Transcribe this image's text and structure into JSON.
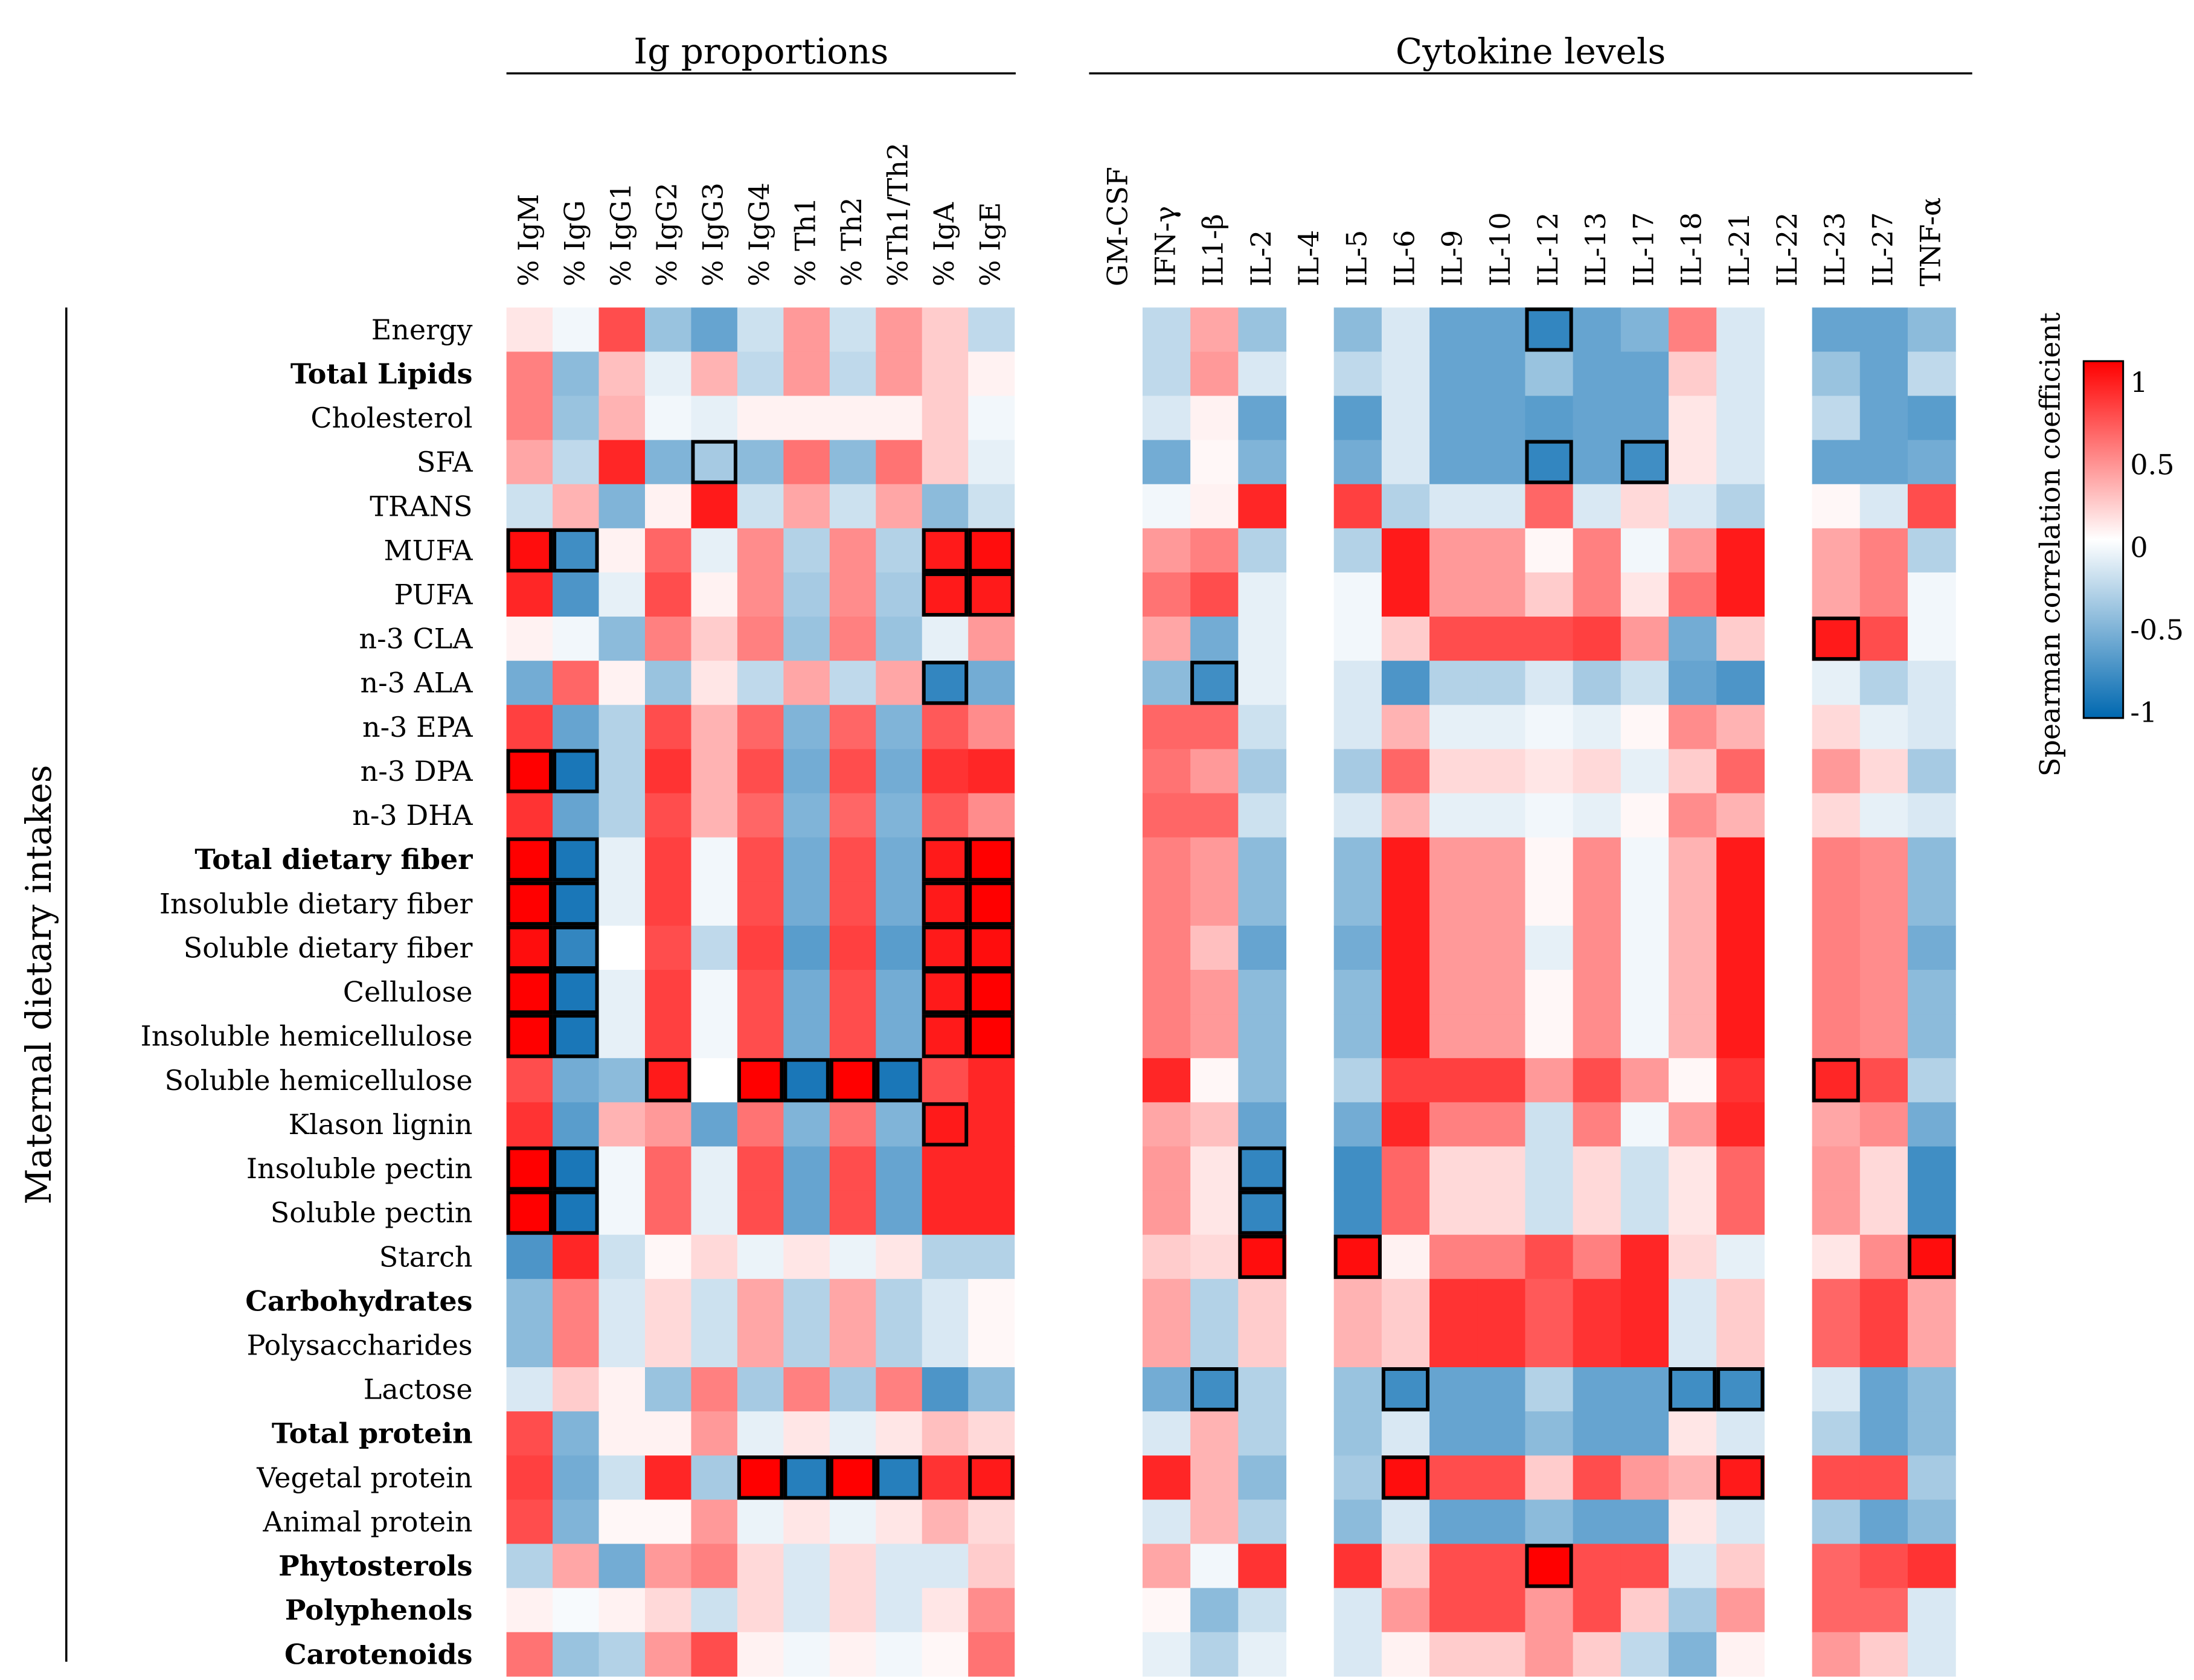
{
  "chart_data": {
    "type": "heatmap",
    "title": "",
    "ylabel": "Maternal dietary intakes",
    "value_range": [
      -1,
      1
    ],
    "groups": [
      {
        "label": "Ig proportions",
        "columns": [
          "% IgM",
          "% IgG",
          "% IgG1",
          "% IgG2",
          "% IgG3",
          "% IgG4",
          "% Th1",
          "% Th2",
          "%Th1/Th2",
          "% IgA",
          "% IgE"
        ]
      },
      {
        "label": "Cytokine levels",
        "columns": [
          "GM-CSF",
          "IFN-γ",
          "IL1-β",
          "IL-2",
          "IL-4",
          "IL-5",
          "IL-6",
          "IL-9",
          "IL-10",
          "IL-12",
          "IL-13",
          "IL-17",
          "IL-18",
          "IL-21",
          "IL-22",
          "IL-23",
          "IL-27",
          "TNF-α"
        ]
      }
    ],
    "rows": [
      {
        "label": "Energy",
        "bold": false
      },
      {
        "label": "Total Lipids",
        "bold": true
      },
      {
        "label": "Cholesterol",
        "bold": false
      },
      {
        "label": "SFA",
        "bold": false
      },
      {
        "label": "TRANS",
        "bold": false
      },
      {
        "label": "MUFA",
        "bold": false
      },
      {
        "label": "PUFA",
        "bold": false
      },
      {
        "label": "n-3 CLA",
        "bold": false
      },
      {
        "label": "n-3 ALA",
        "bold": false
      },
      {
        "label": "n-3 EPA",
        "bold": false
      },
      {
        "label": "n-3 DPA",
        "bold": false
      },
      {
        "label": "n-3 DHA",
        "bold": false
      },
      {
        "label": "Total dietary fiber",
        "bold": true
      },
      {
        "label": "Insoluble dietary fiber",
        "bold": false
      },
      {
        "label": "Soluble dietary fiber",
        "bold": false
      },
      {
        "label": "Cellulose",
        "bold": false
      },
      {
        "label": "Insoluble hemicellulose",
        "bold": false
      },
      {
        "label": "Soluble hemicellulose",
        "bold": false
      },
      {
        "label": "Klason lignin",
        "bold": false
      },
      {
        "label": "Insoluble pectin",
        "bold": false
      },
      {
        "label": "Soluble pectin",
        "bold": false
      },
      {
        "label": "Starch",
        "bold": false
      },
      {
        "label": "Carbohydrates",
        "bold": true
      },
      {
        "label": "Polysaccharides",
        "bold": false
      },
      {
        "label": "Lactose",
        "bold": false
      },
      {
        "label": "Total protein",
        "bold": true
      },
      {
        "label": "Vegetal protein",
        "bold": false
      },
      {
        "label": "Animal protein",
        "bold": false
      },
      {
        "label": "Phytosterols",
        "bold": true
      },
      {
        "label": "Polyphenols",
        "bold": true
      },
      {
        "label": "Carotenoids",
        "bold": true
      }
    ],
    "ig_values": [
      [
        0.1,
        -0.05,
        0.7,
        -0.4,
        -0.6,
        -0.2,
        0.4,
        -0.2,
        0.4,
        0.2,
        -0.25
      ],
      [
        0.5,
        -0.45,
        0.25,
        -0.1,
        0.3,
        -0.25,
        0.4,
        -0.25,
        0.4,
        0.2,
        0.05
      ],
      [
        0.5,
        -0.4,
        0.3,
        -0.05,
        -0.1,
        0.05,
        0.05,
        0.05,
        0.05,
        0.2,
        -0.05
      ],
      [
        0.35,
        -0.25,
        0.85,
        -0.5,
        -0.35,
        -0.45,
        0.55,
        -0.45,
        0.55,
        0.2,
        -0.1
      ],
      [
        -0.2,
        0.3,
        -0.5,
        0.05,
        0.9,
        -0.2,
        0.35,
        -0.2,
        0.35,
        -0.45,
        -0.2
      ],
      [
        0.95,
        -0.75,
        0.05,
        0.6,
        -0.1,
        0.45,
        -0.3,
        0.45,
        -0.3,
        0.9,
        0.95
      ],
      [
        0.85,
        -0.7,
        -0.1,
        0.7,
        0.05,
        0.45,
        -0.35,
        0.45,
        -0.35,
        0.9,
        0.9
      ],
      [
        0.05,
        -0.05,
        -0.45,
        0.5,
        0.2,
        0.5,
        -0.4,
        0.5,
        -0.4,
        -0.1,
        0.4
      ],
      [
        -0.55,
        0.6,
        0.05,
        -0.4,
        0.1,
        -0.25,
        0.35,
        -0.25,
        0.35,
        -0.8,
        -0.55
      ],
      [
        0.75,
        -0.6,
        -0.3,
        0.7,
        0.3,
        0.6,
        -0.5,
        0.6,
        -0.5,
        0.65,
        0.45
      ],
      [
        1.0,
        -0.9,
        -0.3,
        0.8,
        0.3,
        0.7,
        -0.55,
        0.7,
        -0.55,
        0.8,
        0.85
      ],
      [
        0.8,
        -0.6,
        -0.3,
        0.7,
        0.3,
        0.6,
        -0.5,
        0.6,
        -0.5,
        0.65,
        0.45
      ],
      [
        1.0,
        -0.9,
        -0.1,
        0.75,
        -0.05,
        0.7,
        -0.55,
        0.7,
        -0.55,
        0.9,
        1.0
      ],
      [
        1.0,
        -0.9,
        -0.1,
        0.75,
        -0.05,
        0.7,
        -0.55,
        0.7,
        -0.55,
        0.9,
        1.0
      ],
      [
        0.95,
        -0.8,
        0.0,
        0.7,
        -0.25,
        0.75,
        -0.65,
        0.75,
        -0.65,
        0.9,
        0.95
      ],
      [
        1.0,
        -0.9,
        -0.1,
        0.75,
        -0.05,
        0.7,
        -0.55,
        0.7,
        -0.55,
        0.9,
        1.0
      ],
      [
        1.0,
        -0.9,
        -0.1,
        0.75,
        -0.05,
        0.7,
        -0.55,
        0.7,
        -0.55,
        0.9,
        1.0
      ],
      [
        0.7,
        -0.55,
        -0.45,
        0.9,
        0.0,
        1.0,
        -0.9,
        1.0,
        -0.9,
        0.7,
        0.85
      ],
      [
        0.8,
        -0.65,
        0.3,
        0.4,
        -0.6,
        0.55,
        -0.5,
        0.55,
        -0.5,
        0.9,
        0.85
      ],
      [
        1.0,
        -0.9,
        -0.05,
        0.6,
        -0.1,
        0.7,
        -0.6,
        0.7,
        -0.6,
        0.85,
        0.85
      ],
      [
        1.0,
        -0.9,
        -0.05,
        0.6,
        -0.1,
        0.7,
        -0.6,
        0.7,
        -0.6,
        0.85,
        0.85
      ],
      [
        -0.7,
        0.85,
        -0.2,
        0.03,
        0.15,
        -0.08,
        0.1,
        -0.08,
        0.1,
        -0.3,
        -0.3
      ],
      [
        -0.45,
        0.5,
        -0.15,
        0.15,
        -0.2,
        0.35,
        -0.3,
        0.35,
        -0.3,
        -0.15,
        0.03
      ],
      [
        -0.45,
        0.5,
        -0.15,
        0.15,
        -0.2,
        0.35,
        -0.3,
        0.35,
        -0.3,
        -0.15,
        0.03
      ],
      [
        -0.15,
        0.2,
        0.05,
        -0.4,
        0.5,
        -0.35,
        0.5,
        -0.35,
        0.5,
        -0.7,
        -0.45
      ],
      [
        0.7,
        -0.5,
        0.05,
        0.05,
        0.4,
        -0.1,
        0.1,
        -0.1,
        0.1,
        0.25,
        0.15
      ],
      [
        0.75,
        -0.55,
        -0.2,
        0.85,
        -0.35,
        1.0,
        -0.85,
        1.0,
        -0.85,
        0.8,
        0.9
      ],
      [
        0.7,
        -0.5,
        0.03,
        0.03,
        0.4,
        -0.08,
        0.1,
        -0.08,
        0.1,
        0.3,
        0.15
      ],
      [
        -0.3,
        0.35,
        -0.55,
        0.4,
        0.5,
        0.15,
        -0.15,
        0.15,
        -0.15,
        -0.15,
        0.2
      ],
      [
        0.05,
        -0.03,
        0.05,
        0.15,
        -0.2,
        0.15,
        -0.15,
        0.15,
        -0.15,
        0.1,
        0.45
      ],
      [
        0.55,
        -0.4,
        -0.3,
        0.4,
        0.7,
        0.05,
        -0.05,
        0.05,
        -0.05,
        0.03,
        0.55
      ]
    ],
    "cytokine_values": [
      [
        null,
        -0.25,
        0.35,
        -0.4,
        null,
        -0.45,
        -0.15,
        -0.6,
        -0.6,
        -0.8,
        -0.6,
        -0.5,
        0.5,
        -0.15,
        null,
        -0.6,
        -0.6,
        -0.45
      ],
      [
        null,
        -0.25,
        0.4,
        -0.15,
        null,
        -0.25,
        -0.15,
        -0.6,
        -0.6,
        -0.4,
        -0.6,
        -0.6,
        0.2,
        -0.15,
        null,
        -0.4,
        -0.6,
        -0.25
      ],
      [
        null,
        -0.15,
        0.05,
        -0.6,
        null,
        -0.65,
        -0.15,
        -0.6,
        -0.6,
        -0.65,
        -0.6,
        -0.6,
        0.1,
        -0.15,
        null,
        -0.25,
        -0.6,
        -0.65
      ],
      [
        null,
        -0.55,
        0.03,
        -0.5,
        null,
        -0.55,
        -0.15,
        -0.6,
        -0.6,
        -0.8,
        -0.6,
        -0.75,
        0.1,
        -0.15,
        null,
        -0.6,
        -0.6,
        -0.55
      ],
      [
        null,
        -0.05,
        0.05,
        0.85,
        null,
        0.75,
        -0.3,
        -0.15,
        -0.15,
        0.6,
        -0.15,
        0.15,
        -0.15,
        -0.3,
        null,
        0.03,
        -0.15,
        0.7
      ],
      [
        null,
        0.4,
        0.5,
        -0.3,
        null,
        -0.3,
        0.9,
        0.4,
        0.4,
        0.03,
        0.5,
        -0.05,
        0.4,
        0.9,
        null,
        0.35,
        0.5,
        -0.3
      ],
      [
        null,
        0.55,
        0.7,
        -0.1,
        null,
        -0.05,
        0.9,
        0.4,
        0.4,
        0.2,
        0.5,
        0.1,
        0.55,
        0.9,
        null,
        0.35,
        0.5,
        -0.05
      ],
      [
        null,
        0.35,
        -0.55,
        -0.1,
        null,
        -0.05,
        0.2,
        0.7,
        0.7,
        0.7,
        0.75,
        0.4,
        -0.55,
        0.2,
        null,
        0.9,
        0.7,
        -0.05
      ],
      [
        null,
        -0.45,
        -0.75,
        -0.1,
        null,
        -0.15,
        -0.7,
        -0.3,
        -0.3,
        -0.15,
        -0.35,
        -0.2,
        -0.6,
        -0.7,
        null,
        -0.1,
        -0.3,
        -0.15
      ],
      [
        null,
        0.6,
        0.6,
        -0.2,
        null,
        -0.15,
        0.3,
        -0.1,
        -0.1,
        -0.05,
        -0.1,
        0.03,
        0.45,
        0.3,
        null,
        0.15,
        -0.1,
        -0.15
      ],
      [
        null,
        0.55,
        0.4,
        -0.35,
        null,
        -0.35,
        0.6,
        0.15,
        0.15,
        0.1,
        0.15,
        -0.1,
        0.2,
        0.6,
        null,
        0.4,
        0.15,
        -0.35
      ],
      [
        null,
        0.6,
        0.6,
        -0.2,
        null,
        -0.15,
        0.3,
        -0.1,
        -0.1,
        -0.05,
        -0.1,
        0.03,
        0.45,
        0.3,
        null,
        0.15,
        -0.1,
        -0.15
      ],
      [
        null,
        0.5,
        0.4,
        -0.45,
        null,
        -0.45,
        0.9,
        0.4,
        0.4,
        0.03,
        0.45,
        -0.05,
        0.3,
        0.9,
        null,
        0.5,
        0.45,
        -0.45
      ],
      [
        null,
        0.5,
        0.4,
        -0.45,
        null,
        -0.45,
        0.9,
        0.4,
        0.4,
        0.03,
        0.45,
        -0.05,
        0.3,
        0.9,
        null,
        0.5,
        0.45,
        -0.45
      ],
      [
        null,
        0.5,
        0.25,
        -0.6,
        null,
        -0.55,
        0.9,
        0.4,
        0.4,
        -0.1,
        0.45,
        -0.05,
        0.3,
        0.9,
        null,
        0.5,
        0.45,
        -0.55
      ],
      [
        null,
        0.5,
        0.4,
        -0.45,
        null,
        -0.45,
        0.9,
        0.4,
        0.4,
        0.03,
        0.45,
        -0.05,
        0.3,
        0.9,
        null,
        0.5,
        0.45,
        -0.45
      ],
      [
        null,
        0.5,
        0.4,
        -0.45,
        null,
        -0.45,
        0.9,
        0.4,
        0.4,
        0.03,
        0.45,
        -0.05,
        0.3,
        0.9,
        null,
        0.5,
        0.45,
        -0.45
      ],
      [
        null,
        0.85,
        0.03,
        -0.45,
        null,
        -0.3,
        0.75,
        0.75,
        0.75,
        0.4,
        0.7,
        0.4,
        0.03,
        0.8,
        null,
        0.85,
        0.7,
        -0.3
      ],
      [
        null,
        0.35,
        0.25,
        -0.6,
        null,
        -0.55,
        0.85,
        0.5,
        0.5,
        -0.2,
        0.5,
        -0.05,
        0.4,
        0.85,
        null,
        0.35,
        0.45,
        -0.55
      ],
      [
        null,
        0.4,
        0.1,
        -0.8,
        null,
        -0.75,
        0.6,
        0.15,
        0.15,
        -0.2,
        0.15,
        -0.2,
        0.1,
        0.6,
        null,
        0.4,
        0.15,
        -0.75
      ],
      [
        null,
        0.4,
        0.1,
        -0.8,
        null,
        -0.75,
        0.6,
        0.15,
        0.15,
        -0.2,
        0.15,
        -0.2,
        0.1,
        0.6,
        null,
        0.4,
        0.15,
        -0.75
      ],
      [
        null,
        0.2,
        0.15,
        0.95,
        null,
        0.95,
        0.05,
        0.5,
        0.5,
        0.7,
        0.5,
        0.85,
        0.15,
        -0.1,
        null,
        0.1,
        0.45,
        0.95
      ],
      [
        null,
        0.35,
        -0.3,
        0.2,
        null,
        0.3,
        0.2,
        0.8,
        0.8,
        0.65,
        0.8,
        0.85,
        -0.15,
        0.2,
        null,
        0.6,
        0.75,
        0.35
      ],
      [
        null,
        0.35,
        -0.3,
        0.2,
        null,
        0.3,
        0.2,
        0.8,
        0.8,
        0.65,
        0.8,
        0.85,
        -0.15,
        0.2,
        null,
        0.6,
        0.75,
        0.35
      ],
      [
        null,
        -0.55,
        -0.75,
        -0.3,
        null,
        -0.4,
        -0.75,
        -0.6,
        -0.6,
        -0.3,
        -0.6,
        -0.6,
        -0.75,
        -0.75,
        null,
        -0.15,
        -0.6,
        -0.45
      ],
      [
        null,
        -0.15,
        0.3,
        -0.3,
        null,
        -0.4,
        -0.15,
        -0.6,
        -0.6,
        -0.45,
        -0.6,
        -0.6,
        0.1,
        -0.15,
        null,
        -0.3,
        -0.6,
        -0.45
      ],
      [
        null,
        0.85,
        0.3,
        -0.45,
        null,
        -0.35,
        0.95,
        0.7,
        0.7,
        0.2,
        0.7,
        0.4,
        0.3,
        0.9,
        null,
        0.7,
        0.7,
        -0.35
      ],
      [
        null,
        -0.15,
        0.3,
        -0.3,
        null,
        -0.45,
        -0.15,
        -0.6,
        -0.6,
        -0.45,
        -0.6,
        -0.6,
        0.1,
        -0.15,
        null,
        -0.35,
        -0.6,
        -0.45
      ],
      [
        null,
        0.35,
        -0.05,
        0.8,
        null,
        0.8,
        0.2,
        0.7,
        0.7,
        1.0,
        0.7,
        0.7,
        -0.15,
        0.2,
        null,
        0.6,
        0.7,
        0.8
      ],
      [
        null,
        0.03,
        -0.45,
        -0.2,
        null,
        -0.15,
        0.4,
        0.7,
        0.7,
        0.4,
        0.7,
        0.2,
        -0.35,
        0.4,
        null,
        0.6,
        0.6,
        -0.15
      ],
      [
        null,
        -0.1,
        -0.3,
        -0.1,
        null,
        -0.15,
        0.05,
        0.2,
        0.2,
        0.4,
        0.2,
        -0.25,
        -0.5,
        0.05,
        null,
        0.4,
        0.2,
        -0.15
      ]
    ],
    "significant_cells": {
      "ig": [
        [
          3,
          4
        ],
        [
          5,
          0
        ],
        [
          5,
          1
        ],
        [
          5,
          9
        ],
        [
          5,
          10
        ],
        [
          6,
          9
        ],
        [
          6,
          10
        ],
        [
          8,
          9
        ],
        [
          10,
          0
        ],
        [
          10,
          1
        ],
        [
          12,
          0
        ],
        [
          12,
          1
        ],
        [
          12,
          9
        ],
        [
          12,
          10
        ],
        [
          13,
          0
        ],
        [
          13,
          1
        ],
        [
          13,
          9
        ],
        [
          13,
          10
        ],
        [
          14,
          0
        ],
        [
          14,
          1
        ],
        [
          14,
          9
        ],
        [
          14,
          10
        ],
        [
          15,
          0
        ],
        [
          15,
          1
        ],
        [
          15,
          9
        ],
        [
          15,
          10
        ],
        [
          16,
          0
        ],
        [
          16,
          1
        ],
        [
          16,
          9
        ],
        [
          16,
          10
        ],
        [
          17,
          3
        ],
        [
          17,
          5
        ],
        [
          17,
          6
        ],
        [
          17,
          7
        ],
        [
          17,
          8
        ],
        [
          18,
          9
        ],
        [
          19,
          0
        ],
        [
          19,
          1
        ],
        [
          20,
          0
        ],
        [
          20,
          1
        ],
        [
          26,
          5
        ],
        [
          26,
          6
        ],
        [
          26,
          7
        ],
        [
          26,
          8
        ],
        [
          26,
          10
        ]
      ],
      "cytokine": [
        [
          0,
          9
        ],
        [
          3,
          9
        ],
        [
          3,
          11
        ],
        [
          7,
          15
        ],
        [
          8,
          2
        ],
        [
          17,
          15
        ],
        [
          19,
          3
        ],
        [
          20,
          3
        ],
        [
          21,
          3
        ],
        [
          21,
          5
        ],
        [
          21,
          17
        ],
        [
          24,
          2
        ],
        [
          24,
          6
        ],
        [
          24,
          12
        ],
        [
          24,
          13
        ],
        [
          26,
          6
        ],
        [
          26,
          13
        ],
        [
          28,
          9
        ]
      ]
    },
    "colorbar": {
      "label": "Spearman correlation  coefficient",
      "ticks": [
        "1",
        "0.5",
        "0",
        "-0.5",
        "-1"
      ]
    },
    "colors": {
      "negative": "#0068b0",
      "mid": "#ffffff",
      "positive": "#ff0000"
    }
  }
}
